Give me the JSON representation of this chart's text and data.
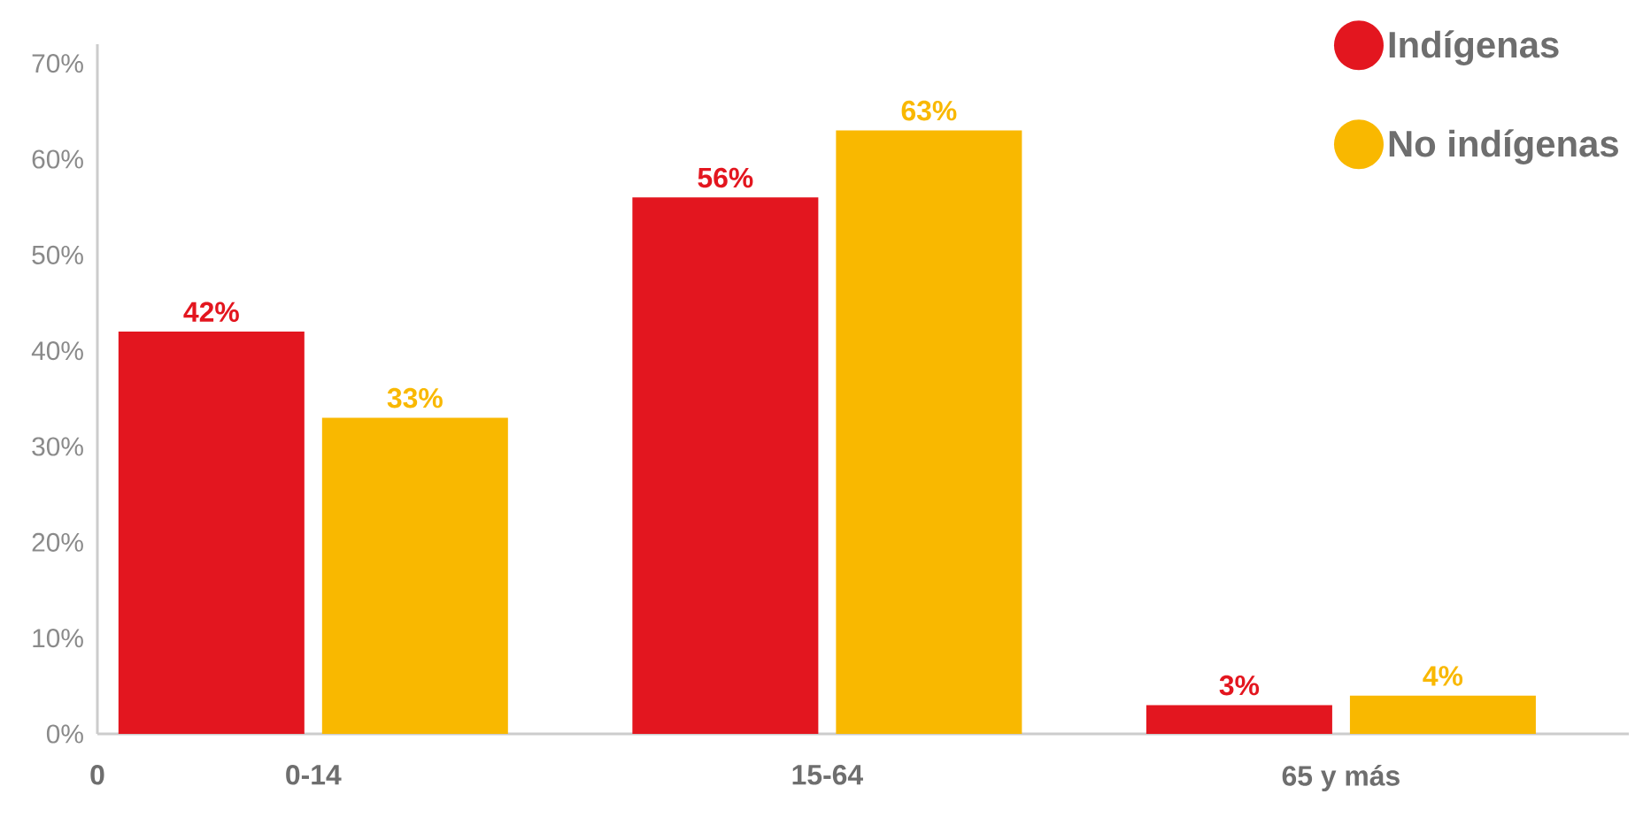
{
  "chart_data": {
    "type": "bar",
    "categories": [
      "0-14",
      "15-64",
      "65 y más"
    ],
    "series": [
      {
        "name": "Indígenas",
        "color": "#e3161f",
        "values": [
          42,
          56,
          3
        ],
        "value_labels": [
          "42%",
          "56%",
          "3%"
        ]
      },
      {
        "name": "No indígenas",
        "color": "#f9b800",
        "values": [
          33,
          63,
          4
        ],
        "value_labels": [
          "33%",
          "63%",
          "4%"
        ]
      }
    ],
    "ylim": [
      0,
      72
    ],
    "yticks": [
      {
        "value": 0,
        "label": "0%"
      },
      {
        "value": 10,
        "label": "10%"
      },
      {
        "value": 20,
        "label": "20%"
      },
      {
        "value": 30,
        "label": "30%"
      },
      {
        "value": 40,
        "label": "40%"
      },
      {
        "value": 50,
        "label": "50%"
      },
      {
        "value": 60,
        "label": "60%"
      },
      {
        "value": 70,
        "label": "70%"
      }
    ],
    "legend": "top right",
    "annotations": [
      "0"
    ]
  }
}
